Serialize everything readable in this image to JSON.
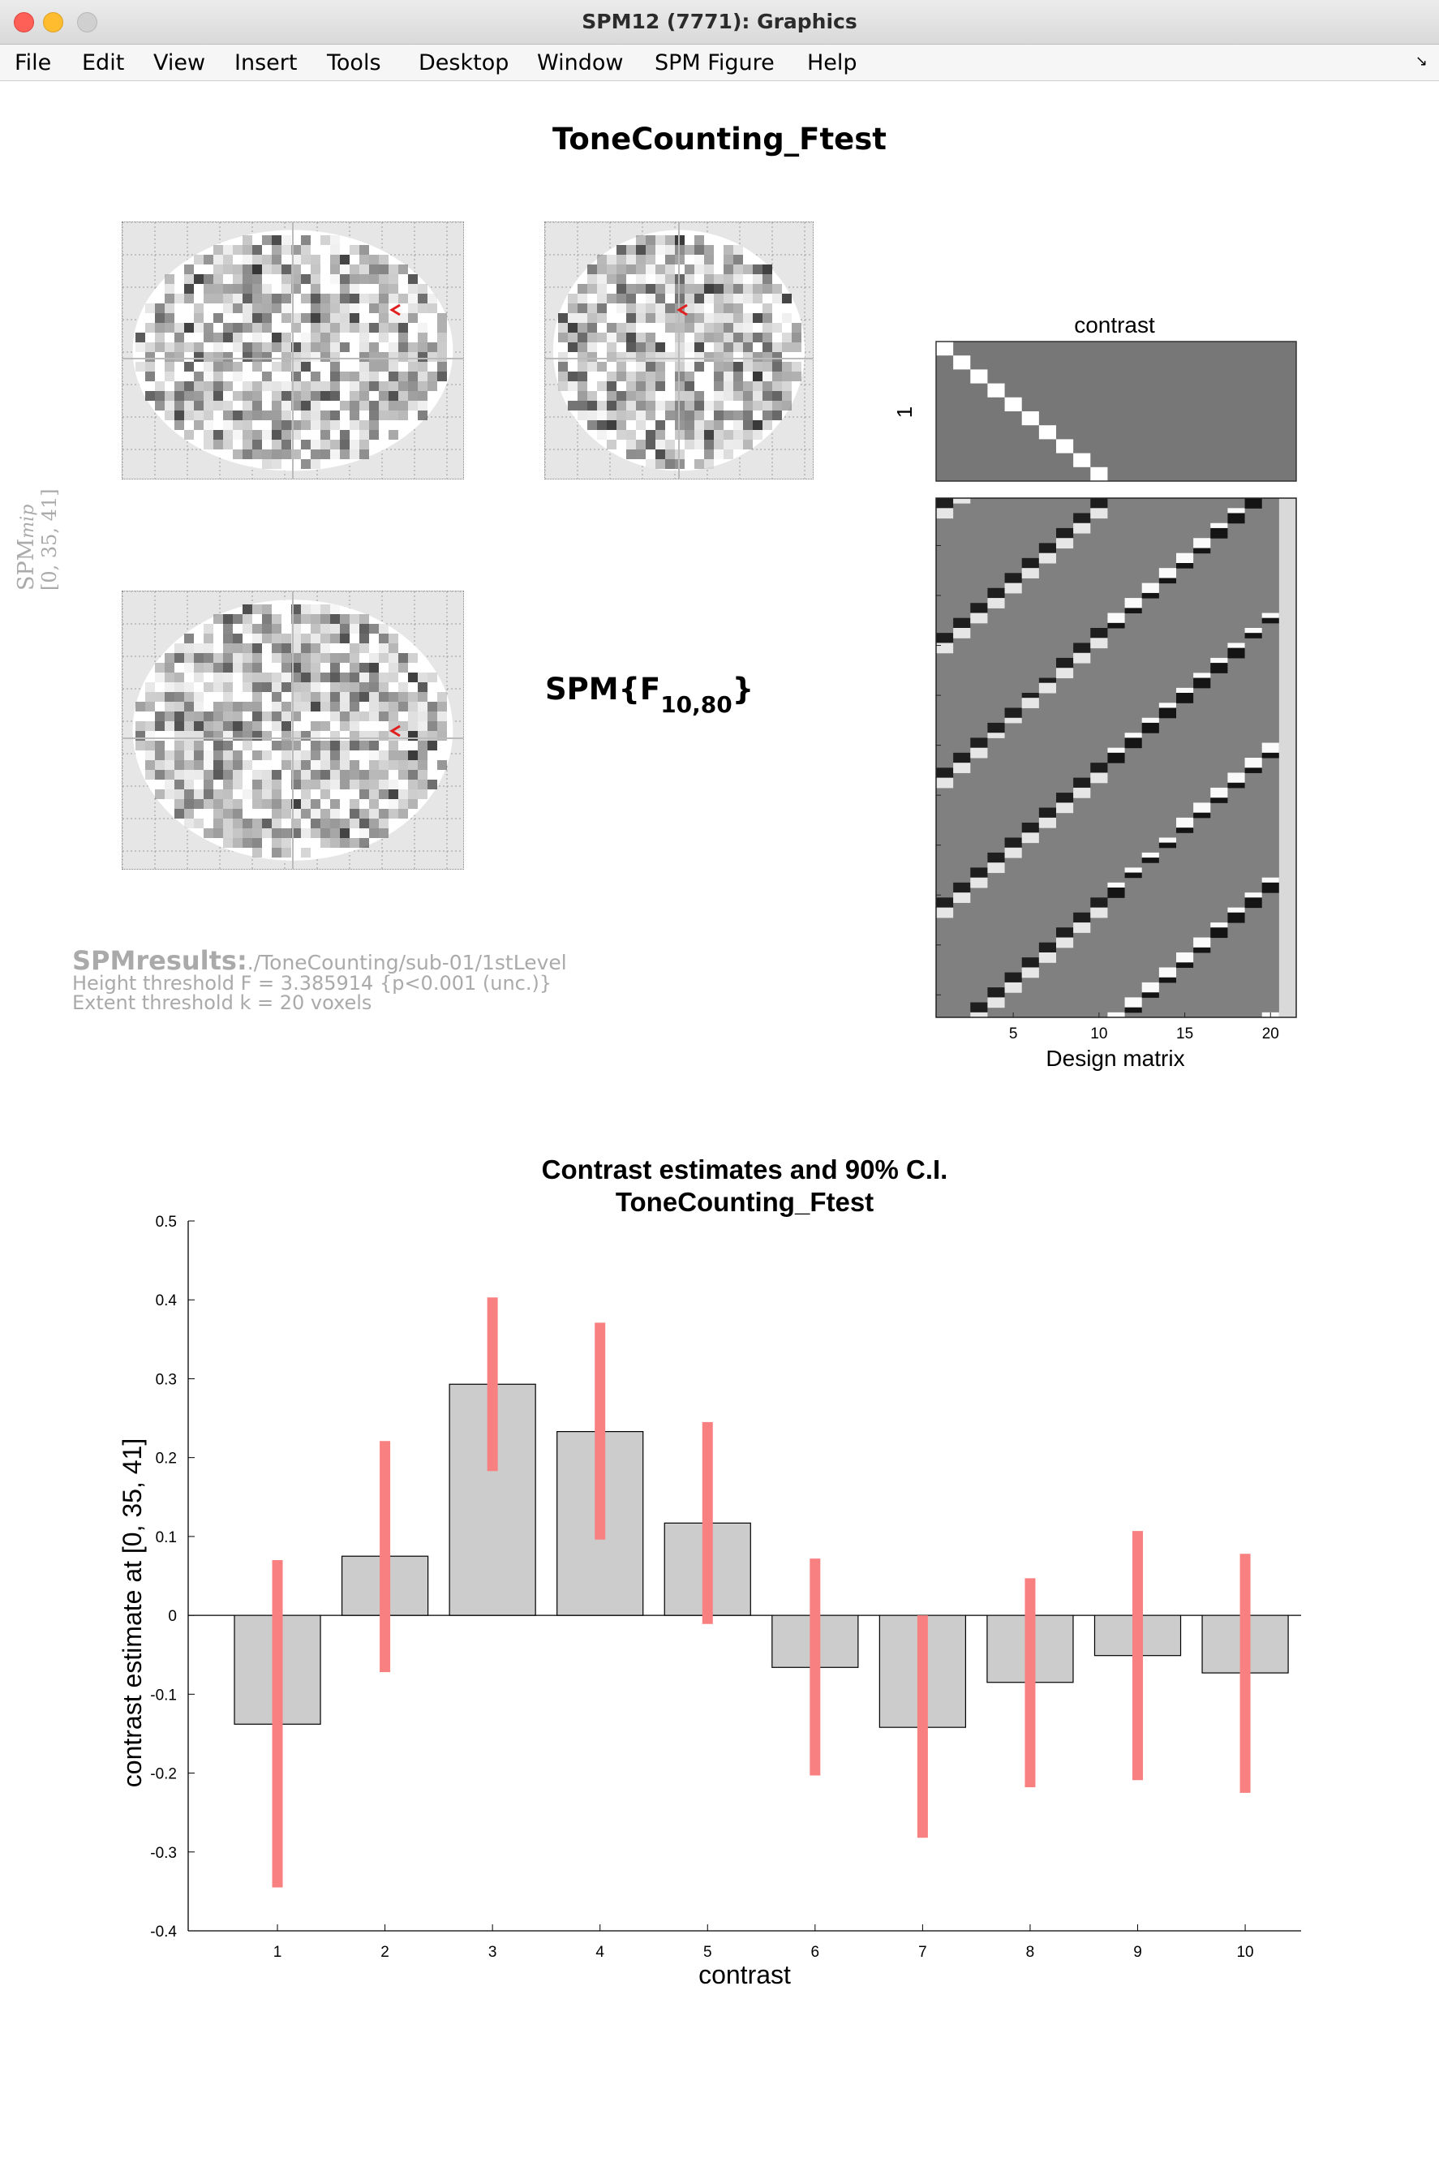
{
  "window": {
    "title": "SPM12 (7771): Graphics",
    "menu": [
      "File",
      "Edit",
      "View",
      "Insert",
      "Tools",
      "Desktop",
      "Window",
      "SPM Figure",
      "Help"
    ]
  },
  "figure": {
    "title": "ToneCounting_Ftest",
    "stat_prefix": "SPM{F",
    "stat_sub": "10,80",
    "stat_suffix": "}",
    "mip_label_main": "SPM",
    "mip_label_italic": "mip",
    "mip_coords": "[0, 35, 41]",
    "results_title": "SPMresults:",
    "results_path": "./ToneCounting/sub-01/1stLevel",
    "height_threshold": "Height threshold F = 3.385914  {p<0.001 (unc.)}",
    "extent_threshold": "Extent threshold k = 20 voxels"
  },
  "contrast_panel": {
    "title": "contrast",
    "ytick": "1",
    "n_regressors": 21,
    "ones_at": [
      1,
      2,
      3,
      4,
      5,
      6,
      7,
      8,
      9,
      10
    ]
  },
  "design_matrix": {
    "xlabel": "Design matrix",
    "n_scans": 104,
    "n_regressors": 21,
    "yticks": [
      10,
      20,
      30,
      40,
      50,
      60,
      70,
      80,
      90,
      100
    ],
    "xticks": [
      5,
      10,
      15,
      20
    ]
  },
  "chart_data": {
    "type": "bar",
    "title": "Contrast estimates and 90% C.I.",
    "subtitle": "ToneCounting_Ftest",
    "xlabel": "contrast",
    "ylabel": "contrast estimate at [0, 35, 41]",
    "categories": [
      "1",
      "2",
      "3",
      "4",
      "5",
      "6",
      "7",
      "8",
      "9",
      "10"
    ],
    "values": [
      -0.138,
      0.075,
      0.293,
      0.233,
      0.117,
      -0.066,
      -0.142,
      -0.085,
      -0.051,
      -0.073
    ],
    "ci_lower": [
      -0.345,
      -0.072,
      0.183,
      0.096,
      -0.011,
      -0.203,
      -0.282,
      -0.218,
      -0.209,
      -0.225
    ],
    "ci_upper": [
      0.07,
      0.221,
      0.403,
      0.371,
      0.245,
      0.072,
      0.0,
      0.047,
      0.107,
      0.078
    ],
    "ylim": [
      -0.4,
      0.5
    ],
    "yticks": [
      "-0.4",
      "-0.3",
      "-0.2",
      "-0.1",
      "0",
      "0.1",
      "0.2",
      "0.3",
      "0.4",
      "0.5"
    ],
    "bar_color": "#cccccc",
    "ci_color": "#f88080",
    "grid": false,
    "legend": "none"
  }
}
